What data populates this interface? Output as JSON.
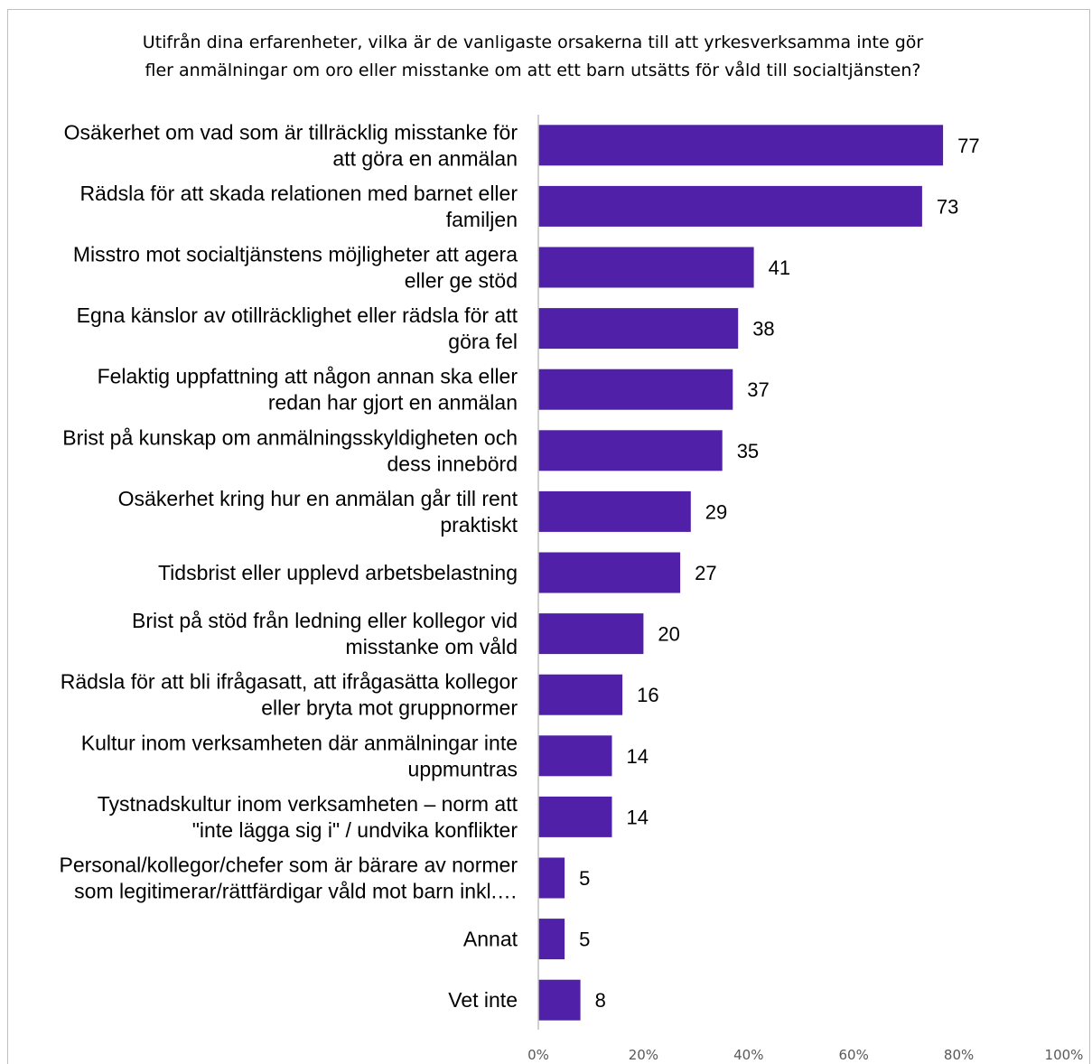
{
  "chart_data": {
    "type": "bar",
    "orientation": "horizontal",
    "title_lines": [
      "Utifrån dina erfarenheter, vilka är de vanligaste orsakerna till att yrkesverksamma inte gör",
      "fler anmälningar om oro eller misstanke om att ett barn utsätts för våld till socialtjänsten?"
    ],
    "categories": [
      [
        "Osäkerhet om vad som är tillräcklig misstanke för",
        "att göra en anmälan"
      ],
      [
        "Rädsla för att skada relationen med barnet eller",
        "familjen"
      ],
      [
        "Misstro mot socialtjänstens möjligheter att agera",
        "eller ge stöd"
      ],
      [
        "Egna känslor av otillräcklighet eller rädsla för att",
        "göra fel"
      ],
      [
        "Felaktig uppfattning att någon annan ska eller",
        "redan har gjort en anmälan"
      ],
      [
        "Brist på kunskap om anmälningsskyldigheten och",
        "dess innebörd"
      ],
      [
        "Osäkerhet kring hur en anmälan går till rent",
        "praktiskt"
      ],
      [
        "Tidsbrist eller upplevd arbetsbelastning"
      ],
      [
        "Brist på stöd från ledning eller kollegor vid",
        "misstanke om våld"
      ],
      [
        "Rädsla för att bli ifrågasatt, att ifrågasätta kollegor",
        "eller bryta mot gruppnormer"
      ],
      [
        "Kultur inom verksamheten där anmälningar inte",
        "uppmuntras"
      ],
      [
        "Tystnadskultur inom verksamheten – norm att",
        "\"inte lägga sig i\" / undvika konflikter"
      ],
      [
        "Personal/kollegor/chefer som är bärare av normer",
        "som legitimerar/rättfärdigar våld mot barn inkl.…"
      ],
      [
        "Annat"
      ],
      [
        "Vet inte"
      ]
    ],
    "values": [
      77,
      73,
      41,
      38,
      37,
      35,
      29,
      27,
      20,
      16,
      14,
      14,
      5,
      5,
      8
    ],
    "value_labels": [
      "77",
      "73",
      "41",
      "38",
      "37",
      "35",
      "29",
      "27",
      "20",
      "16",
      "14",
      "14",
      "5",
      "5",
      "8"
    ],
    "xlim": [
      0,
      100
    ],
    "x_ticks": [
      0,
      20,
      40,
      60,
      80,
      100
    ],
    "x_tick_labels": [
      "0%",
      "20%",
      "40%",
      "60%",
      "80%",
      "100%"
    ],
    "grid": false,
    "legend": "none",
    "bar_color": "#5020a8",
    "axis_color": "#bfbfbf"
  }
}
